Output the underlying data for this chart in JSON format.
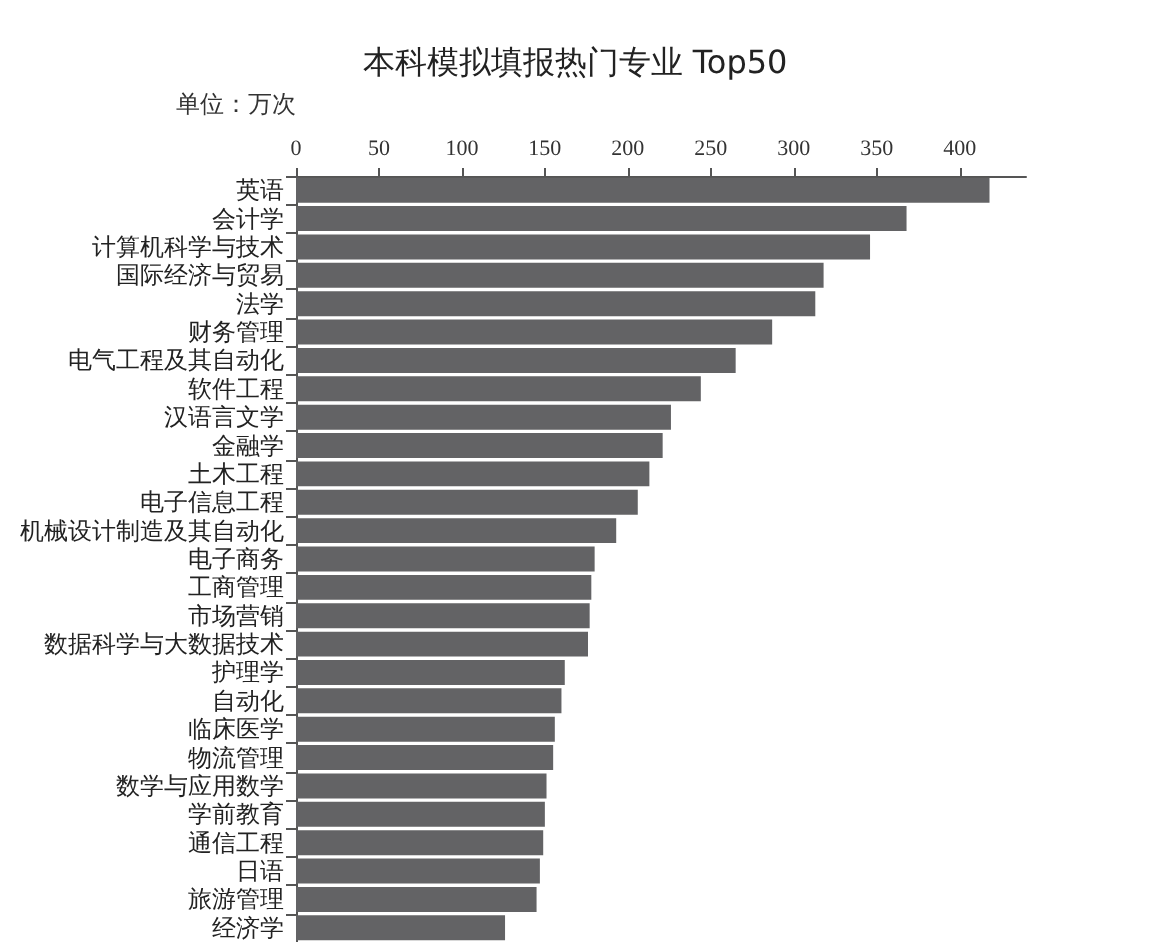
{
  "chart_data": {
    "type": "bar",
    "orientation": "horizontal",
    "title": "本科模拟填报热门专业 Top50",
    "annotations": [
      "单位：万次"
    ],
    "categories": [
      "英语",
      "会计学",
      "计算机科学与技术",
      "国际经济与贸易",
      "法学",
      "财务管理",
      "电气工程及其自动化",
      "软件工程",
      "汉语言文学",
      "金融学",
      "土木工程",
      "电子信息工程",
      "机械设计制造及其自动化",
      "电子商务",
      "工商管理",
      "市场营销",
      "数据科学与大数据技术",
      "护理学",
      "自动化",
      "临床医学",
      "物流管理",
      "数学与应用数学",
      "学前教育",
      "通信工程",
      "日语",
      "旅游管理",
      "经济学"
    ],
    "values": [
      418,
      368,
      346,
      318,
      313,
      287,
      265,
      244,
      226,
      221,
      213,
      206,
      193,
      180,
      178,
      177,
      176,
      162,
      160,
      156,
      155,
      151,
      150,
      149,
      147,
      145,
      126
    ],
    "color": "#636365",
    "xlim": [
      0,
      440
    ],
    "xticks": [
      0,
      50,
      100,
      150,
      200,
      250,
      300,
      350,
      400
    ],
    "grid": false
  }
}
